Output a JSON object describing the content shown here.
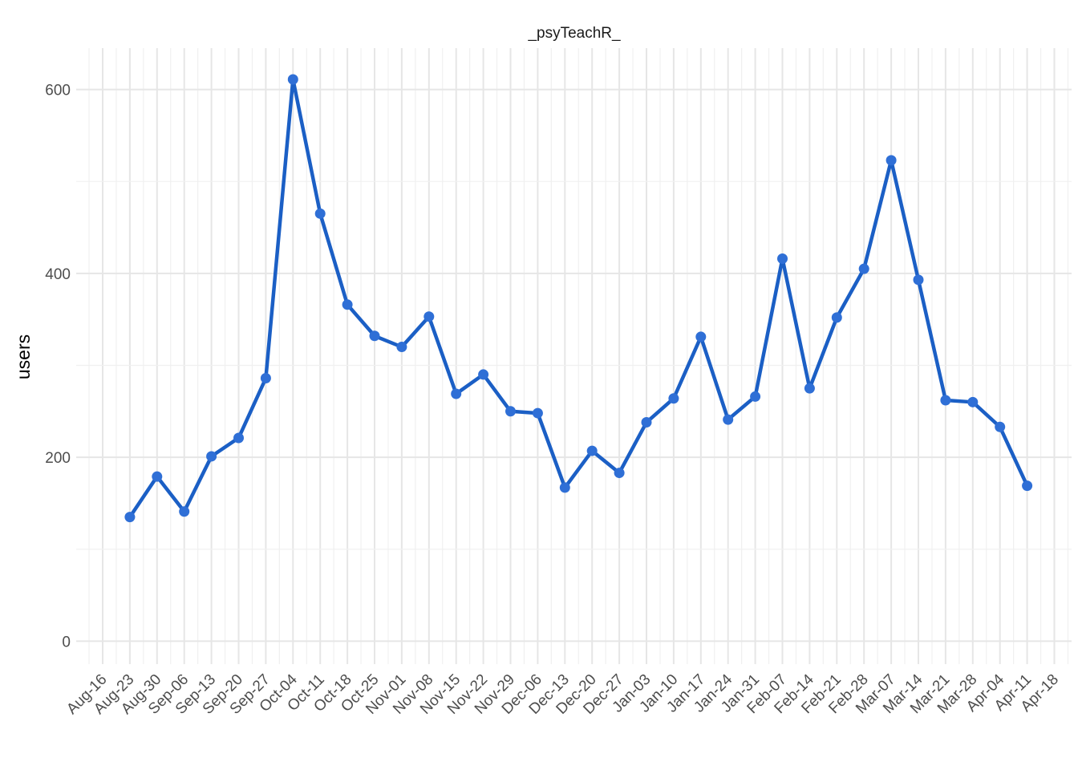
{
  "chart_data": {
    "type": "line",
    "title": "_psyTeachR_",
    "xlabel": "",
    "ylabel": "users",
    "ylim": [
      -25,
      645
    ],
    "yticks": [
      0,
      200,
      400,
      600
    ],
    "grid": true,
    "legend": "none",
    "x_tick_labels": [
      "Aug-16",
      "Aug-23",
      "Aug-30",
      "Sep-06",
      "Sep-13",
      "Sep-20",
      "Sep-27",
      "Oct-04",
      "Oct-11",
      "Oct-18",
      "Oct-25",
      "Nov-01",
      "Nov-08",
      "Nov-15",
      "Nov-22",
      "Nov-29",
      "Dec-06",
      "Dec-13",
      "Dec-20",
      "Dec-27",
      "Jan-03",
      "Jan-10",
      "Jan-17",
      "Jan-24",
      "Jan-31",
      "Feb-07",
      "Feb-14",
      "Feb-21",
      "Feb-28",
      "Mar-07",
      "Mar-14",
      "Mar-21",
      "Mar-28",
      "Apr-04",
      "Apr-11",
      "Apr-18"
    ],
    "x": [
      "Aug-23",
      "Aug-30",
      "Sep-06",
      "Sep-13",
      "Sep-20",
      "Sep-27",
      "Oct-04",
      "Oct-11",
      "Oct-18",
      "Oct-25",
      "Nov-01",
      "Nov-08",
      "Nov-15",
      "Nov-22",
      "Nov-29",
      "Dec-06",
      "Dec-13",
      "Dec-20",
      "Dec-27",
      "Jan-03",
      "Jan-10",
      "Jan-17",
      "Jan-24",
      "Jan-31",
      "Feb-07",
      "Feb-14",
      "Feb-21",
      "Feb-28",
      "Mar-07",
      "Mar-14",
      "Mar-21",
      "Mar-28",
      "Apr-04",
      "Apr-11"
    ],
    "series": [
      {
        "color": "#1b5fc5",
        "values": [
          135,
          179,
          141,
          201,
          221,
          286,
          611,
          465,
          366,
          332,
          320,
          353,
          269,
          290,
          250,
          248,
          167,
          207,
          183,
          238,
          264,
          331,
          241,
          266,
          416,
          275,
          352,
          405,
          523,
          393,
          262,
          260,
          233,
          169
        ]
      }
    ]
  }
}
